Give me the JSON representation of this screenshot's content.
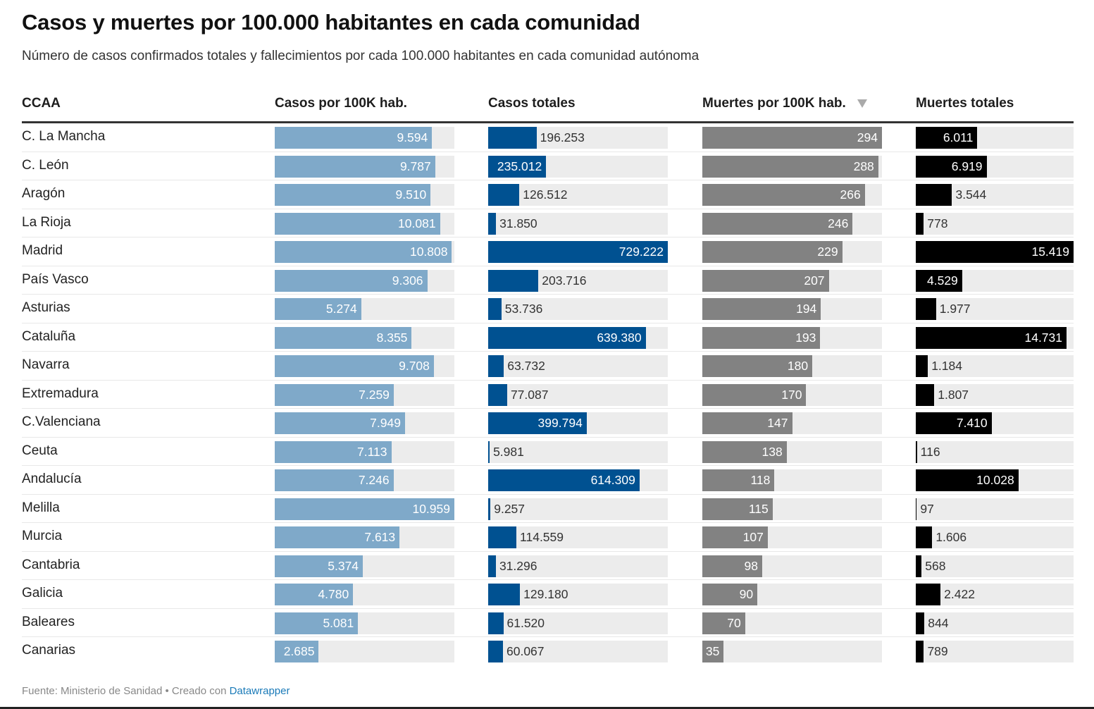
{
  "title": "Casos y muertes por 100.000 habitantes en cada comunidad",
  "subtitle": "Número de casos confirmados totales y fallecimientos por cada 100.000 habitantes en cada comunidad autónoma",
  "columns": {
    "ccaa": "CCAA",
    "casos100k": "Casos por 100K hab.",
    "casos_totales": "Casos totales",
    "muertes100k": "Muertes por 100K hab.",
    "muertes_totales": "Muertes totales"
  },
  "sort": {
    "column": "muertes100k",
    "direction": "descending",
    "icon": "sort-descending-icon"
  },
  "colors": {
    "casos100k": "#7fa9c9",
    "casos_totales": "#005191",
    "muertes100k": "#828282",
    "muertes_totales": "#000000",
    "bar_background": "#ececec",
    "link": "#1a7ab8"
  },
  "footer": {
    "source": "Fuente: Ministerio de Sanidad • Creado con ",
    "link_label": "Datawrapper"
  },
  "chart_data": {
    "type": "table",
    "title": "Casos y muertes por 100.000 habitantes en cada comunidad",
    "columns": [
      "CCAA",
      "Casos por 100K hab.",
      "Casos totales",
      "Muertes por 100K hab.",
      "Muertes totales"
    ],
    "max": {
      "casos100k": 10959,
      "casos_totales": 729222,
      "muertes100k": 294,
      "muertes_totales": 15419
    },
    "rows": [
      {
        "ccaa": "C. La Mancha",
        "casos100k": 9594,
        "casos100k_label": "9.594",
        "casos_totales": 196253,
        "casos_totales_label": "196.253",
        "muertes100k": 294,
        "muertes100k_label": "294",
        "muertes_totales": 6011,
        "muertes_totales_label": "6.011"
      },
      {
        "ccaa": "C. León",
        "casos100k": 9787,
        "casos100k_label": "9.787",
        "casos_totales": 235012,
        "casos_totales_label": "235.012",
        "muertes100k": 288,
        "muertes100k_label": "288",
        "muertes_totales": 6919,
        "muertes_totales_label": "6.919"
      },
      {
        "ccaa": "Aragón",
        "casos100k": 9510,
        "casos100k_label": "9.510",
        "casos_totales": 126512,
        "casos_totales_label": "126.512",
        "muertes100k": 266,
        "muertes100k_label": "266",
        "muertes_totales": 3544,
        "muertes_totales_label": "3.544"
      },
      {
        "ccaa": "La Rioja",
        "casos100k": 10081,
        "casos100k_label": "10.081",
        "casos_totales": 31850,
        "casos_totales_label": "31.850",
        "muertes100k": 246,
        "muertes100k_label": "246",
        "muertes_totales": 778,
        "muertes_totales_label": "778"
      },
      {
        "ccaa": "Madrid",
        "casos100k": 10808,
        "casos100k_label": "10.808",
        "casos_totales": 729222,
        "casos_totales_label": "729.222",
        "muertes100k": 229,
        "muertes100k_label": "229",
        "muertes_totales": 15419,
        "muertes_totales_label": "15.419"
      },
      {
        "ccaa": "País Vasco",
        "casos100k": 9306,
        "casos100k_label": "9.306",
        "casos_totales": 203716,
        "casos_totales_label": "203.716",
        "muertes100k": 207,
        "muertes100k_label": "207",
        "muertes_totales": 4529,
        "muertes_totales_label": "4.529"
      },
      {
        "ccaa": "Asturias",
        "casos100k": 5274,
        "casos100k_label": "5.274",
        "casos_totales": 53736,
        "casos_totales_label": "53.736",
        "muertes100k": 194,
        "muertes100k_label": "194",
        "muertes_totales": 1977,
        "muertes_totales_label": "1.977"
      },
      {
        "ccaa": "Cataluña",
        "casos100k": 8355,
        "casos100k_label": "8.355",
        "casos_totales": 639380,
        "casos_totales_label": "639.380",
        "muertes100k": 193,
        "muertes100k_label": "193",
        "muertes_totales": 14731,
        "muertes_totales_label": "14.731"
      },
      {
        "ccaa": "Navarra",
        "casos100k": 9708,
        "casos100k_label": "9.708",
        "casos_totales": 63732,
        "casos_totales_label": "63.732",
        "muertes100k": 180,
        "muertes100k_label": "180",
        "muertes_totales": 1184,
        "muertes_totales_label": "1.184"
      },
      {
        "ccaa": "Extremadura",
        "casos100k": 7259,
        "casos100k_label": "7.259",
        "casos_totales": 77087,
        "casos_totales_label": "77.087",
        "muertes100k": 170,
        "muertes100k_label": "170",
        "muertes_totales": 1807,
        "muertes_totales_label": "1.807"
      },
      {
        "ccaa": "C.Valenciana",
        "casos100k": 7949,
        "casos100k_label": "7.949",
        "casos_totales": 399794,
        "casos_totales_label": "399.794",
        "muertes100k": 147,
        "muertes100k_label": "147",
        "muertes_totales": 7410,
        "muertes_totales_label": "7.410"
      },
      {
        "ccaa": "Ceuta",
        "casos100k": 7113,
        "casos100k_label": "7.113",
        "casos_totales": 5981,
        "casos_totales_label": "5.981",
        "muertes100k": 138,
        "muertes100k_label": "138",
        "muertes_totales": 116,
        "muertes_totales_label": "116"
      },
      {
        "ccaa": "Andalucía",
        "casos100k": 7246,
        "casos100k_label": "7.246",
        "casos_totales": 614309,
        "casos_totales_label": "614.309",
        "muertes100k": 118,
        "muertes100k_label": "118",
        "muertes_totales": 10028,
        "muertes_totales_label": "10.028"
      },
      {
        "ccaa": "Melilla",
        "casos100k": 10959,
        "casos100k_label": "10.959",
        "casos_totales": 9257,
        "casos_totales_label": "9.257",
        "muertes100k": 115,
        "muertes100k_label": "115",
        "muertes_totales": 97,
        "muertes_totales_label": "97"
      },
      {
        "ccaa": "Murcia",
        "casos100k": 7613,
        "casos100k_label": "7.613",
        "casos_totales": 114559,
        "casos_totales_label": "114.559",
        "muertes100k": 107,
        "muertes100k_label": "107",
        "muertes_totales": 1606,
        "muertes_totales_label": "1.606"
      },
      {
        "ccaa": "Cantabria",
        "casos100k": 5374,
        "casos100k_label": "5.374",
        "casos_totales": 31296,
        "casos_totales_label": "31.296",
        "muertes100k": 98,
        "muertes100k_label": "98",
        "muertes_totales": 568,
        "muertes_totales_label": "568"
      },
      {
        "ccaa": "Galicia",
        "casos100k": 4780,
        "casos100k_label": "4.780",
        "casos_totales": 129180,
        "casos_totales_label": "129.180",
        "muertes100k": 90,
        "muertes100k_label": "90",
        "muertes_totales": 2422,
        "muertes_totales_label": "2.422"
      },
      {
        "ccaa": "Baleares",
        "casos100k": 5081,
        "casos100k_label": "5.081",
        "casos_totales": 61520,
        "casos_totales_label": "61.520",
        "muertes100k": 70,
        "muertes100k_label": "70",
        "muertes_totales": 844,
        "muertes_totales_label": "844"
      },
      {
        "ccaa": "Canarias",
        "casos100k": 2685,
        "casos100k_label": "2.685",
        "casos_totales": 60067,
        "casos_totales_label": "60.067",
        "muertes100k": 35,
        "muertes100k_label": "35",
        "muertes_totales": 789,
        "muertes_totales_label": "789"
      }
    ]
  }
}
